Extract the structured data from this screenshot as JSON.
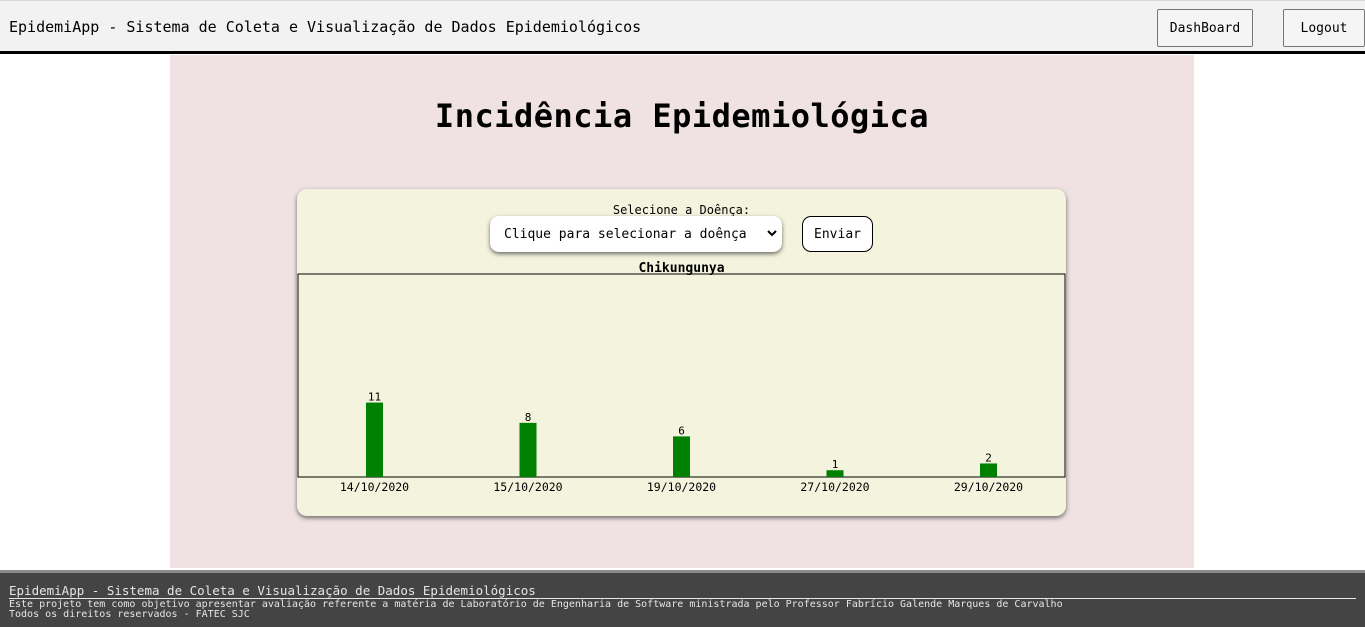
{
  "header": {
    "app_title": "EpidemiApp - Sistema de Coleta e Visualização de Dados Epidemiológicos",
    "dashboard_label": "DashBoard",
    "logout_label": "Logout"
  },
  "main": {
    "page_title": "Incidência Epidemiológica",
    "select_label": "Selecione a Doênça:",
    "select_value": "Clique para selecionar a doênça",
    "send_label": "Enviar"
  },
  "chart_data": {
    "type": "bar",
    "title": "Chikungunya",
    "categories": [
      "14/10/2020",
      "15/10/2020",
      "19/10/2020",
      "27/10/2020",
      "29/10/2020"
    ],
    "values": [
      11,
      8,
      6,
      1,
      2
    ],
    "bar_color": "#008000",
    "ylim": [
      0,
      30
    ],
    "grid": false
  },
  "footer": {
    "title": "EpidemiApp - Sistema de Coleta e Visualização de Dados Epidemiológicos",
    "description": "Este projeto tem como objetivo apresentar avaliação referente a matéria de Laboratório de Engenharia de Software ministrada pelo Professor Fabrício Galende Marques de Carvalho",
    "rights": "Todos os direitos reservados - FATEC SJC"
  }
}
